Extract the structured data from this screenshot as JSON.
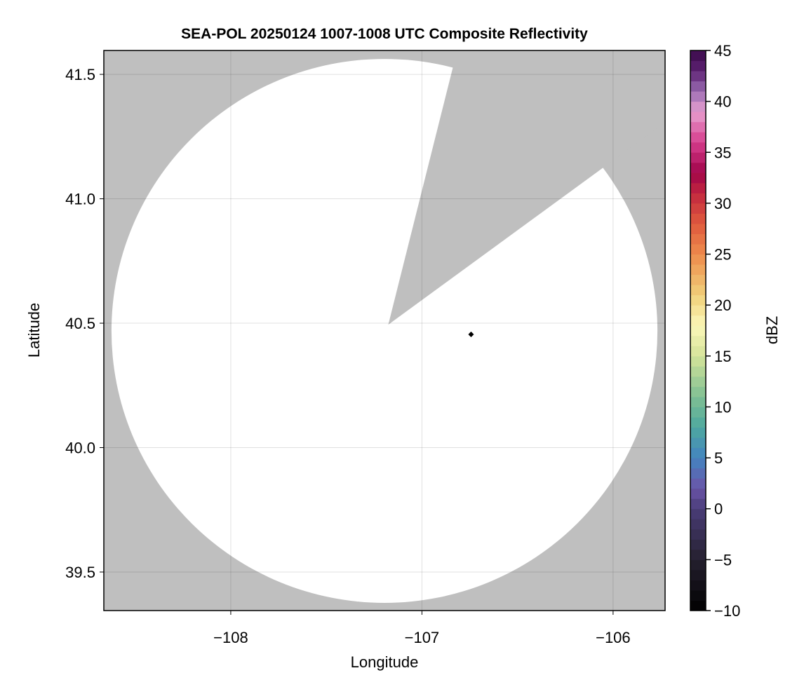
{
  "chart_data": {
    "type": "heatmap",
    "title": "SEA-POL 20250124 1007-1008 UTC Composite Reflectivity",
    "xlabel": "Longitude",
    "ylabel": "Latitude",
    "xlim": [
      -108.664,
      -105.728
    ],
    "ylim": [
      39.345,
      41.596
    ],
    "xticks": [
      -108,
      -107,
      -106
    ],
    "xtick_labels": [
      "−108",
      "−107",
      "−106"
    ],
    "yticks": [
      39.5,
      40.0,
      40.5,
      41.0,
      41.5
    ],
    "ytick_labels": [
      "39.5",
      "40.0",
      "40.5",
      "41.0",
      "41.5"
    ],
    "grid": true,
    "background_color": "#bfbfbf",
    "coverage_color": "#ffffff",
    "radar_coverage": {
      "center": [
        -107.196,
        40.469
      ],
      "radius_lon": 1.428,
      "radius_lat": 1.093
    },
    "blocked_sector": {
      "apex": [
        -107.176,
        40.494
      ],
      "edge1": [
        -106.839,
        41.525
      ],
      "edge2": [
        -106.061,
        41.12
      ]
    },
    "marker": {
      "lon": -106.743,
      "lat": 40.455,
      "shape": "diamond",
      "color": "#000000"
    },
    "colorbar": {
      "label": "dBZ",
      "range": [
        -10,
        45
      ],
      "step": 1,
      "ticks": [
        -10,
        -5,
        0,
        5,
        10,
        15,
        20,
        25,
        30,
        35,
        40,
        45
      ],
      "tick_labels": [
        "−10",
        "−5",
        "0",
        "5",
        "10",
        "15",
        "20",
        "25",
        "30",
        "35",
        "40",
        "45"
      ],
      "colormap_stops": [
        [
          -10,
          "#000000"
        ],
        [
          -5,
          "#25202f"
        ],
        [
          0,
          "#4a3d78"
        ],
        [
          2,
          "#6a54a8"
        ],
        [
          5,
          "#4384c0"
        ],
        [
          8,
          "#4ea89f"
        ],
        [
          11,
          "#7fbf93"
        ],
        [
          15,
          "#d4e39a"
        ],
        [
          18,
          "#fbf7b8"
        ],
        [
          21,
          "#f0d07a"
        ],
        [
          25,
          "#ee8b4c"
        ],
        [
          28,
          "#e05a3e"
        ],
        [
          31,
          "#c2273f"
        ],
        [
          33,
          "#a1044a"
        ],
        [
          36,
          "#d63d8d"
        ],
        [
          39,
          "#e8a0d0"
        ],
        [
          41,
          "#9a6cb2"
        ],
        [
          43,
          "#5e2273"
        ],
        [
          45,
          "#3a0a4a"
        ]
      ]
    }
  }
}
